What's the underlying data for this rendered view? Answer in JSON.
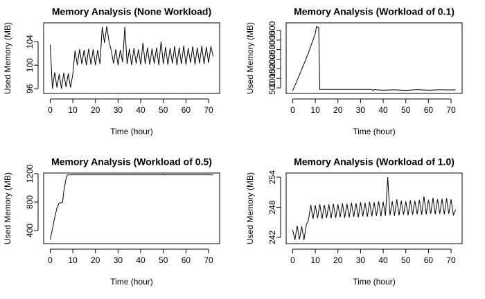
{
  "chart_data": [
    {
      "type": "line",
      "title": "Memory Analysis (None Workload)",
      "xlabel": "Time (hour)",
      "ylabel": "Used Memory (MB)",
      "color": "#000000",
      "xlim": [
        -2.88,
        74.88
      ],
      "ylim": [
        95.2,
        107.2
      ],
      "xticks": [
        0,
        10,
        20,
        30,
        40,
        50,
        60,
        70
      ],
      "yticks": [
        96,
        100,
        104
      ],
      "x": [
        0,
        1,
        2,
        3,
        4,
        5,
        6,
        7,
        8,
        9,
        10,
        11,
        12,
        13,
        14,
        15,
        16,
        17,
        18,
        19,
        20,
        21,
        22,
        23,
        24,
        25,
        26,
        27,
        28,
        29,
        30,
        31,
        32,
        33,
        34,
        35,
        36,
        37,
        38,
        39,
        40,
        41,
        42,
        43,
        44,
        45,
        46,
        47,
        48,
        49,
        50,
        51,
        52,
        53,
        54,
        55,
        56,
        57,
        58,
        59,
        60,
        61,
        62,
        63,
        64,
        65,
        66,
        67,
        68,
        69,
        70,
        71,
        72
      ],
      "values": [
        103.5,
        96,
        98.8,
        96.2,
        98.5,
        96,
        98.7,
        96.3,
        98.6,
        96.2,
        98.5,
        102.5,
        100,
        102.7,
        100.2,
        102.6,
        100,
        102.8,
        100.1,
        102.7,
        100,
        102.6,
        100.2,
        106.5,
        103.8,
        106.6,
        104,
        102.5,
        100.3,
        102.7,
        100,
        102.6,
        100.5,
        106.5,
        100.2,
        102.8,
        100,
        102.9,
        100.3,
        102.7,
        100.1,
        103.8,
        100.2,
        103,
        100.1,
        102.8,
        100.3,
        103,
        100,
        104,
        100.2,
        103.1,
        100.1,
        102.9,
        100.3,
        103.2,
        100,
        103,
        100.2,
        103.3,
        100.1,
        102.9,
        100.4,
        103.2,
        100.1,
        103,
        100.3,
        103.3,
        100.2,
        103.1,
        100.4,
        103.2,
        101.5
      ]
    },
    {
      "type": "line",
      "title": "Memory Analysis (Workload of 0.1)",
      "xlabel": "Time (hour)",
      "ylabel": "Used Memory (MB)",
      "color": "#000000",
      "xlim": [
        -2.88,
        74.88
      ],
      "ylim": [
        211,
        3898
      ],
      "xticks": [
        0,
        10,
        20,
        30,
        40,
        50,
        60,
        70
      ],
      "yticks": [
        500,
        1000,
        1500,
        2000,
        2500,
        3000,
        3500
      ],
      "x": [
        0,
        1,
        2,
        3,
        4,
        5,
        6,
        7,
        8,
        9,
        10,
        10.5,
        11.5,
        12,
        20,
        35,
        35.5,
        36,
        40,
        45,
        50,
        55,
        60,
        65,
        70,
        72
      ],
      "values": [
        350,
        620,
        900,
        1180,
        1470,
        1750,
        2050,
        2330,
        2680,
        3000,
        3350,
        3700,
        3650,
        420,
        420,
        420,
        360,
        410,
        380,
        400,
        370,
        410,
        380,
        400,
        390,
        400
      ]
    },
    {
      "type": "line",
      "title": "Memory Analysis (Workload of 0.5)",
      "xlabel": "Time (hour)",
      "ylabel": "Used Memory (MB)",
      "color": "#000000",
      "xlim": [
        -2.88,
        74.88
      ],
      "ylim": [
        215,
        1210
      ],
      "xticks": [
        0,
        10,
        20,
        30,
        40,
        50,
        60,
        70
      ],
      "yticks": [
        400,
        800,
        1200
      ],
      "x": [
        0,
        1,
        2,
        3,
        4,
        5,
        5.5,
        6,
        7,
        7.5,
        8,
        20,
        40,
        49.8,
        50,
        50.2,
        60,
        72
      ],
      "values": [
        270,
        420,
        580,
        720,
        790,
        790,
        800,
        950,
        1130,
        1180,
        1185,
        1185,
        1185,
        1185,
        1195,
        1185,
        1185,
        1185
      ]
    },
    {
      "type": "line",
      "title": "Memory Analysis (Workload of 1.0)",
      "xlabel": "Time (hour)",
      "ylabel": "Used Memory (MB)",
      "color": "#000000",
      "xlim": [
        -2.88,
        74.88
      ],
      "ylim": [
        240.76,
        254.83
      ],
      "xticks": [
        0,
        10,
        20,
        30,
        40,
        50,
        60,
        70
      ],
      "yticks": [
        242,
        248,
        254
      ],
      "x": [
        0,
        1,
        2,
        3,
        4,
        5,
        6,
        7,
        8,
        9,
        10,
        11,
        12,
        13,
        14,
        15,
        16,
        17,
        18,
        19,
        20,
        21,
        22,
        23,
        24,
        25,
        26,
        27,
        28,
        29,
        30,
        31,
        32,
        33,
        34,
        35,
        36,
        37,
        38,
        39,
        40,
        41,
        42,
        43,
        44,
        45,
        46,
        47,
        48,
        49,
        50,
        51,
        52,
        53,
        54,
        55,
        56,
        57,
        58,
        59,
        60,
        61,
        62,
        63,
        64,
        65,
        66,
        67,
        68,
        69,
        70,
        71,
        72
      ],
      "values": [
        243.5,
        241.5,
        244.3,
        241.6,
        244.2,
        241.5,
        244.5,
        245.5,
        248.5,
        245.7,
        248.4,
        245.8,
        248.6,
        245.7,
        248.5,
        245.9,
        248.6,
        245.8,
        248.7,
        245.9,
        248.6,
        246,
        248.8,
        245.9,
        248.7,
        246,
        248.9,
        246.1,
        248.8,
        246,
        249,
        246.2,
        248.9,
        246.1,
        249.1,
        246.2,
        249,
        246.3,
        249.2,
        246.2,
        249.1,
        246.3,
        254,
        246.4,
        249.2,
        246.3,
        249.6,
        246.4,
        249.3,
        246.5,
        249.2,
        246.4,
        249.4,
        246.5,
        249.3,
        246.6,
        249.5,
        246.5,
        250.2,
        246.6,
        249.5,
        246.7,
        249.9,
        246.6,
        249.6,
        246.7,
        249.7,
        246.6,
        249.8,
        246.7,
        249.6,
        246.5,
        247.5
      ]
    }
  ]
}
